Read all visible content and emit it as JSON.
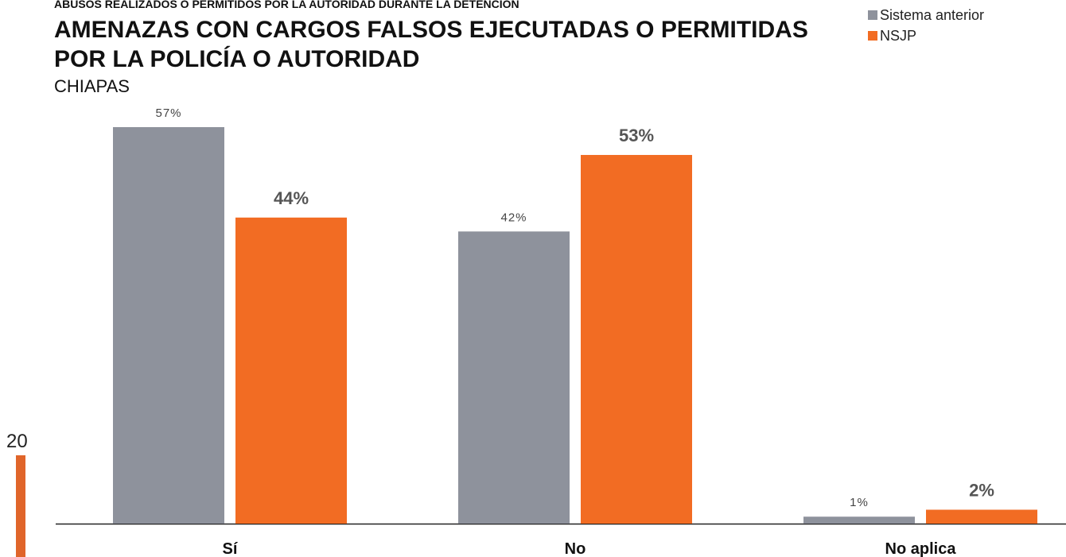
{
  "page_number": "20",
  "chart_data": {
    "type": "bar",
    "supertitle": "ABUSOS REALIZADOS O PERMITIDOS POR LA AUTORIDAD DURANTE LA DETENCIÓN",
    "title": [
      "AMENAZAS CON CARGOS FALSOS EJECUTADAS O PERMITIDAS",
      "POR LA POLICÍA O AUTORIDAD"
    ],
    "subtitle": "CHIAPAS",
    "categories": [
      "Sí",
      "No",
      "No aplica"
    ],
    "series": [
      {
        "name": "Sistema anterior",
        "color": "#8e929c",
        "values": [
          57,
          42,
          1
        ],
        "value_labels": [
          "57%",
          "42%",
          "1%"
        ]
      },
      {
        "name": "NSJP",
        "color": "#f26c23",
        "values": [
          44,
          53,
          2
        ],
        "value_labels": [
          "44%",
          "53%",
          "2%"
        ]
      }
    ],
    "legend": "top-right"
  }
}
